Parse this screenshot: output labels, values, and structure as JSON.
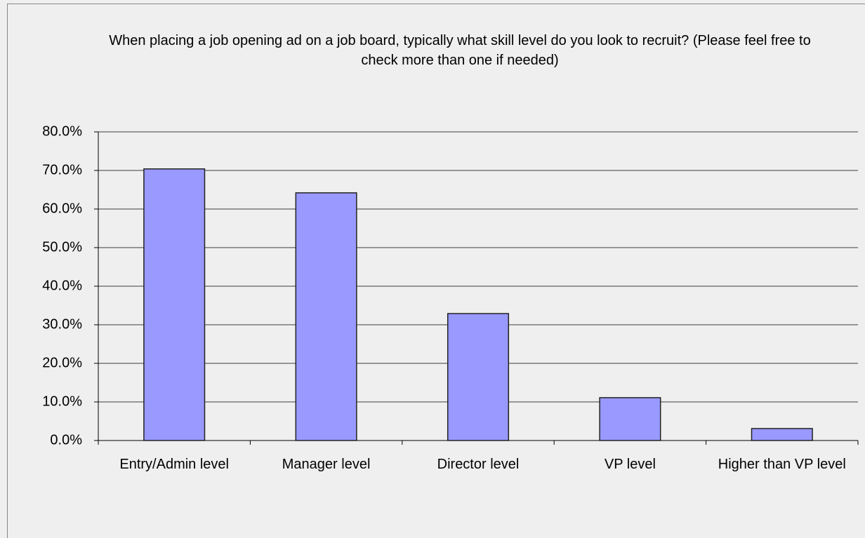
{
  "chart_data": {
    "type": "bar",
    "title": "When placing a job opening ad on a job board, typically what skill level do you look to recruit? (Please feel free to check more than one if needed)",
    "categories": [
      "Entry/Admin level",
      "Manager level",
      "Director level",
      "VP level",
      "Higher than VP level"
    ],
    "values": [
      70.4,
      64.2,
      32.9,
      11.1,
      3.1
    ],
    "color": "#9999ff",
    "ylim": [
      0,
      80
    ],
    "yticks": [
      {
        "value": 0,
        "label": "0.0%"
      },
      {
        "value": 10,
        "label": "10.0%"
      },
      {
        "value": 20,
        "label": "20.0%"
      },
      {
        "value": 30,
        "label": "30.0%"
      },
      {
        "value": 40,
        "label": "40.0%"
      },
      {
        "value": 50,
        "label": "50.0%"
      },
      {
        "value": 60,
        "label": "60.0%"
      },
      {
        "value": 70,
        "label": "70.0%"
      },
      {
        "value": 80,
        "label": "80.0%"
      }
    ],
    "grid": true
  }
}
